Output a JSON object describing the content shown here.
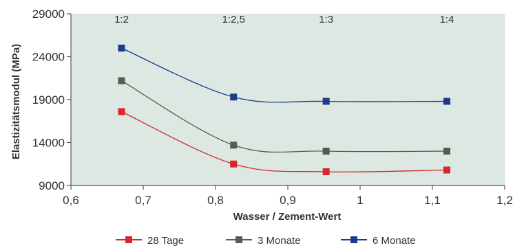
{
  "chart_data": {
    "type": "line",
    "xlabel": "Wasser / Zement-Wert",
    "ylabel": "Elastizitätsmodul (MPa)",
    "xlim": [
      0.6,
      1.2
    ],
    "ylim": [
      9000,
      29000
    ],
    "x_ticks": [
      "0,6",
      "0,7",
      "0,8",
      "0,9",
      "1",
      "1,1",
      "1,2"
    ],
    "y_ticks": [
      "9000",
      "14000",
      "19000",
      "24000",
      "29000"
    ],
    "x_tick_values": [
      0.6,
      0.7,
      0.8,
      0.9,
      1.0,
      1.1,
      1.2
    ],
    "y_tick_values": [
      9000,
      14000,
      19000,
      24000,
      29000
    ],
    "ratio_labels": [
      {
        "x": 0.67,
        "text": "1:2"
      },
      {
        "x": 0.825,
        "text": "1:2,5"
      },
      {
        "x": 0.953,
        "text": "1:3"
      },
      {
        "x": 1.12,
        "text": "1:4"
      }
    ],
    "x": [
      0.67,
      0.825,
      0.953,
      1.12
    ],
    "series": [
      {
        "name": "28 Tage",
        "color": "#d7262d",
        "values": [
          17600,
          11500,
          10600,
          10800
        ]
      },
      {
        "name": "3 Monate",
        "color": "#5a5a50",
        "values": [
          21200,
          13700,
          13000,
          13000
        ]
      },
      {
        "name": "6 Monate",
        "color": "#1e3a8c",
        "values": [
          25000,
          19300,
          18800,
          18800
        ]
      }
    ],
    "legend_position": "bottom",
    "plot_background": "#dce8e1",
    "grid": false
  }
}
